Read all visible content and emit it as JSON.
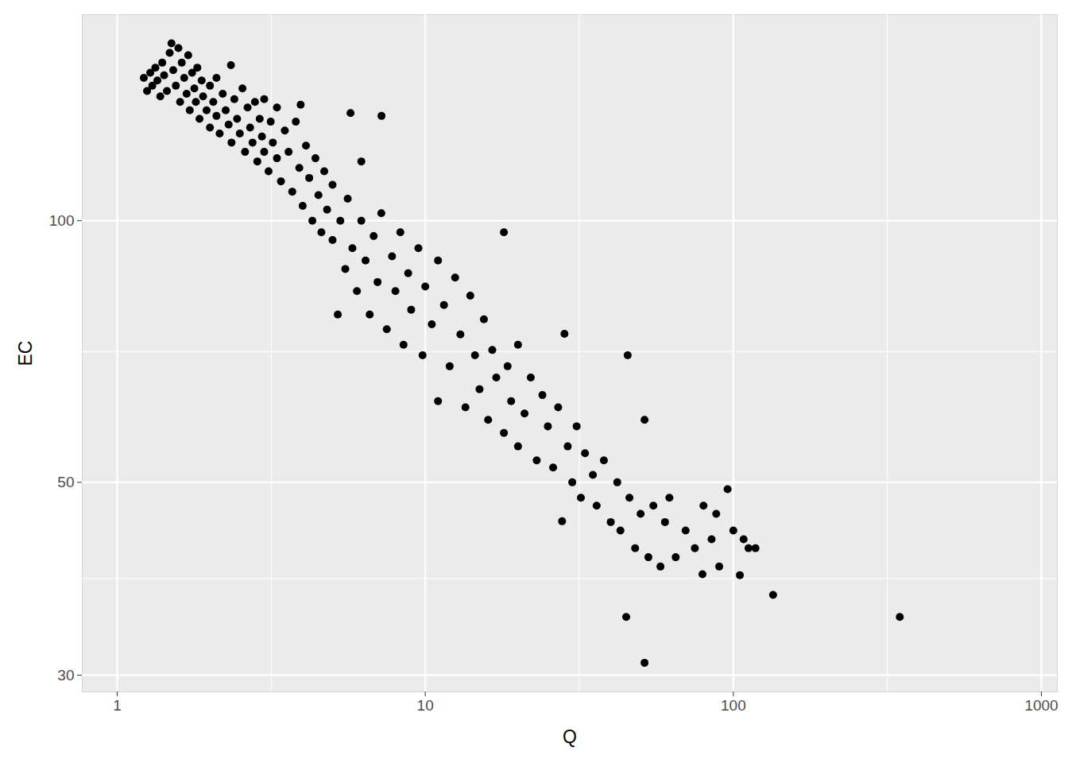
{
  "chart_data": {
    "type": "scatter",
    "x_label": "Q",
    "y_label": "EC",
    "color": "#000000",
    "marker": "circle",
    "log": true,
    "grid": true,
    "xlim": [
      0.77,
      1126
    ],
    "ylim": [
      28.7,
      172.6
    ],
    "xticks": [
      1,
      10,
      100,
      1000
    ],
    "yticks": [
      30,
      50,
      100
    ],
    "x": [
      1.22,
      1.25,
      1.28,
      1.3,
      1.33,
      1.35,
      1.38,
      1.4,
      1.42,
      1.45,
      1.48,
      1.5,
      1.52,
      1.55,
      1.58,
      1.6,
      1.62,
      1.65,
      1.68,
      1.7,
      1.72,
      1.75,
      1.78,
      1.8,
      1.82,
      1.85,
      1.88,
      1.9,
      1.95,
      2.0,
      2.0,
      2.05,
      2.1,
      2.1,
      2.15,
      2.2,
      2.25,
      2.3,
      2.34,
      2.35,
      2.4,
      2.45,
      2.5,
      2.55,
      2.6,
      2.65,
      2.7,
      2.75,
      2.8,
      2.85,
      2.9,
      2.95,
      3.0,
      3.0,
      3.1,
      3.15,
      3.2,
      3.3,
      3.3,
      3.4,
      3.5,
      3.6,
      3.7,
      3.8,
      3.9,
      3.94,
      4.0,
      4.1,
      4.2,
      4.3,
      4.4,
      4.5,
      4.6,
      4.7,
      4.8,
      5.0,
      5.0,
      5.2,
      5.3,
      5.5,
      5.6,
      5.72,
      5.8,
      6.0,
      6.2,
      6.2,
      6.4,
      6.6,
      6.8,
      7.0,
      7.21,
      7.2,
      7.5,
      7.8,
      8.0,
      8.3,
      8.5,
      8.8,
      9.0,
      9.5,
      9.8,
      10,
      10.5,
      11,
      11,
      11.5,
      12,
      12.5,
      13,
      13.5,
      14,
      14.5,
      15,
      15.5,
      16,
      16.5,
      17,
      18,
      18,
      18.5,
      19,
      20,
      20,
      21,
      22,
      23,
      24,
      25,
      26,
      27,
      27.8,
      28.3,
      29,
      30,
      31,
      32,
      33,
      35,
      36,
      38,
      40,
      42,
      43,
      45.4,
      44.9,
      46,
      48,
      50,
      51.5,
      51.5,
      53,
      55,
      58,
      60,
      62,
      65,
      70,
      75,
      79.4,
      80,
      85,
      88,
      90,
      95.8,
      100,
      105,
      108,
      112,
      118,
      134.6,
      347
    ],
    "values": [
      146,
      141,
      148,
      143,
      150,
      145,
      139,
      152,
      147,
      141,
      156,
      160,
      149,
      143,
      158,
      137,
      152,
      146,
      140,
      155,
      134,
      148,
      142,
      137,
      150,
      131,
      145,
      139,
      134,
      143,
      128,
      137,
      132,
      146,
      126,
      140,
      134,
      129,
      151,
      123,
      138,
      131,
      126,
      142,
      120,
      135,
      128,
      123,
      137,
      117,
      131,
      125,
      120,
      138,
      114,
      130,
      123,
      118,
      135,
      111,
      127,
      120,
      108,
      130,
      115,
      136,
      104,
      122,
      112,
      100,
      118,
      107,
      97,
      114,
      103,
      95,
      110,
      78,
      100,
      88,
      106,
      133,
      93,
      83,
      117,
      100,
      90,
      78,
      96,
      85,
      132,
      102,
      75,
      91,
      83,
      97,
      72,
      87,
      79,
      93,
      70,
      84,
      76,
      90,
      62,
      80,
      68,
      86,
      74,
      61,
      82,
      70,
      64,
      77,
      59,
      71,
      66,
      97,
      57,
      68,
      62,
      55,
      72,
      60,
      66,
      53,
      63,
      58,
      52,
      61,
      45.1,
      74.1,
      55,
      50,
      58,
      48,
      54,
      51,
      47,
      53,
      45,
      50,
      44,
      70,
      35,
      48,
      42,
      46,
      59,
      31,
      41,
      47,
      40,
      45,
      48,
      41,
      44,
      42,
      39.2,
      47,
      43,
      46,
      40,
      49.1,
      44,
      39.1,
      43,
      42,
      42,
      37.1,
      35
    ]
  }
}
